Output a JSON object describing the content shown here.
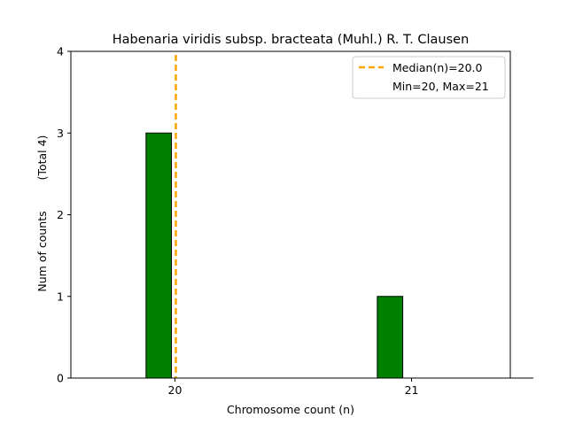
{
  "chart_data": {
    "type": "bar",
    "title": "Habenaria viridis subsp. bracteata (Muhl.) R. T. Clausen",
    "xlabel": "Chromosome count (n)",
    "ylabel": "Num of counts",
    "ylabel_note": "(Total 4)",
    "categories": [
      "20",
      "21"
    ],
    "values": [
      3,
      1
    ],
    "bar_color": "#008000",
    "bar_edge_color": "#000000",
    "xlim": [
      19.55,
      21.45
    ],
    "ylim": [
      0,
      4
    ],
    "xticks": [
      20,
      21
    ],
    "yticks": [
      0,
      1,
      2,
      3,
      4
    ],
    "median": 20.0,
    "median_color": "#ffa500",
    "legend": {
      "position": "top-right",
      "entries": [
        "Median(n)=20.0",
        "Min=20, Max=21"
      ]
    },
    "grid": false
  }
}
